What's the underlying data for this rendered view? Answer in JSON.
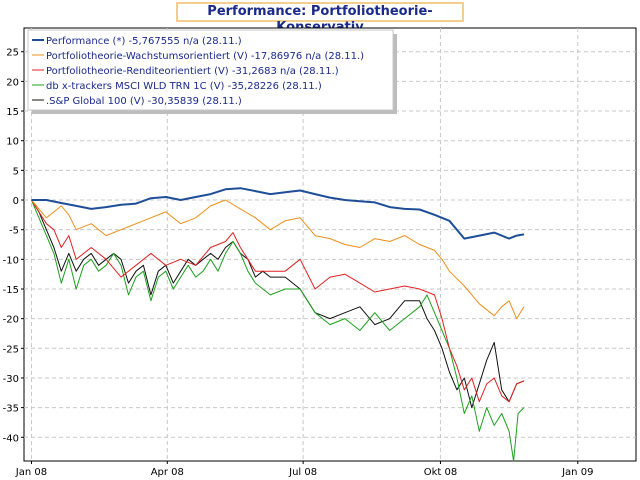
{
  "chart_data": {
    "type": "line",
    "title": "Performance: Portfoliotheorie-Konservativ",
    "xlabel": "",
    "ylabel": "",
    "x_ticks": [
      "Jan 08",
      "Apr 08",
      "Jul 08",
      "Okt 08",
      "Jan 09"
    ],
    "x_tick_days": [
      0,
      91,
      182,
      274,
      366
    ],
    "x_range_days": [
      -5,
      405
    ],
    "ylim": [
      -44,
      29
    ],
    "y_ticks": [
      25,
      20,
      15,
      10,
      5,
      0,
      -5,
      -10,
      -15,
      -20,
      -25,
      -30,
      -35,
      -40
    ],
    "grid": true,
    "legend_position": "top-left",
    "series": [
      {
        "name": "Performance (*) -5,767555 n/a (28.11.)",
        "color": "#1f4e99",
        "days": [
          0,
          10,
          20,
          30,
          40,
          50,
          60,
          70,
          80,
          90,
          100,
          110,
          120,
          130,
          140,
          150,
          160,
          170,
          180,
          190,
          200,
          210,
          220,
          230,
          240,
          250,
          260,
          270,
          280,
          290,
          300,
          310,
          320,
          325,
          330
        ],
        "values": [
          0,
          0,
          -0.5,
          -1.0,
          -1.5,
          -1.2,
          -0.8,
          -0.6,
          0.3,
          0.5,
          0.0,
          0.5,
          1.0,
          1.8,
          2.0,
          1.5,
          1.0,
          1.3,
          1.6,
          1.0,
          0.4,
          0.0,
          -0.2,
          -0.4,
          -1.2,
          -1.5,
          -1.6,
          -2.5,
          -3.5,
          -6.5,
          -6.0,
          -5.5,
          -6.5,
          -6.0,
          -5.8
        ]
      },
      {
        "name": "Portfoliotheorie-Wachstumsorientiert (V) -17,86976 n/a (28.11.)",
        "color": "#ee8f1c",
        "days": [
          0,
          5,
          10,
          15,
          20,
          25,
          30,
          40,
          50,
          60,
          70,
          80,
          90,
          100,
          110,
          120,
          130,
          140,
          150,
          160,
          170,
          180,
          190,
          200,
          210,
          220,
          230,
          240,
          250,
          260,
          270,
          275,
          280,
          290,
          300,
          310,
          315,
          320,
          325,
          330
        ],
        "values": [
          0,
          -1.5,
          -3.0,
          -2.0,
          -1.0,
          -2.5,
          -5.0,
          -4.0,
          -6.0,
          -5.0,
          -4.0,
          -3.0,
          -2.0,
          -4.0,
          -3.0,
          -1.0,
          0.0,
          -1.5,
          -3.0,
          -5.0,
          -3.5,
          -3.0,
          -6.0,
          -6.5,
          -7.5,
          -8.0,
          -6.5,
          -7.0,
          -6.0,
          -7.5,
          -8.5,
          -10.0,
          -12.0,
          -14.5,
          -17.5,
          -19.5,
          -18.0,
          -17.0,
          -20.0,
          -18.0
        ]
      },
      {
        "name": "Portfoliotheorie-Renditeorientiert (V) -31,2683 n/a (28.11.)",
        "color": "#e02222",
        "days": [
          0,
          5,
          10,
          15,
          20,
          25,
          30,
          40,
          50,
          60,
          70,
          80,
          90,
          100,
          110,
          120,
          130,
          135,
          140,
          150,
          160,
          170,
          180,
          190,
          200,
          210,
          220,
          230,
          240,
          250,
          260,
          270,
          275,
          280,
          285,
          290,
          295,
          300,
          305,
          310,
          315,
          320,
          325,
          330
        ],
        "values": [
          0,
          -2,
          -4,
          -5,
          -8,
          -6,
          -10,
          -8,
          -10,
          -13,
          -11,
          -9,
          -11,
          -10,
          -11,
          -8,
          -7,
          -5.5,
          -8,
          -12,
          -12,
          -12,
          -10,
          -15,
          -13,
          -12.5,
          -14,
          -15.5,
          -15,
          -14.5,
          -15,
          -16,
          -20,
          -25,
          -28,
          -32,
          -30,
          -34,
          -31,
          -30,
          -33,
          -34,
          -31,
          -30.5
        ]
      },
      {
        "name": "db x-trackers MSCI WLD TRN 1C (V) -35,28226 (28.11.)",
        "color": "#1ea01e",
        "days": [
          0,
          5,
          10,
          15,
          20,
          25,
          30,
          35,
          40,
          45,
          50,
          55,
          60,
          65,
          70,
          75,
          80,
          85,
          90,
          95,
          100,
          105,
          110,
          115,
          120,
          125,
          130,
          135,
          140,
          145,
          150,
          160,
          170,
          180,
          190,
          200,
          210,
          220,
          230,
          240,
          250,
          260,
          265,
          270,
          275,
          280,
          285,
          290,
          295,
          300,
          305,
          310,
          315,
          320,
          323,
          326,
          330
        ],
        "values": [
          0,
          -3,
          -6,
          -9,
          -14,
          -10,
          -15,
          -11,
          -10,
          -12,
          -11,
          -9,
          -11,
          -16,
          -13,
          -12,
          -17,
          -13,
          -12,
          -15,
          -13,
          -11,
          -13,
          -12,
          -10,
          -12,
          -9,
          -7,
          -9,
          -12,
          -14,
          -16,
          -15,
          -15,
          -19,
          -21,
          -20,
          -22,
          -19,
          -22,
          -20,
          -18,
          -16,
          -19,
          -22,
          -25,
          -30,
          -36,
          -33,
          -39,
          -35,
          -38,
          -36,
          -39,
          -44,
          -36,
          -35
        ]
      },
      {
        "name": ".S&P Global 100 (V) -30,35839 (28.11.)",
        "color": "#111111",
        "days": [
          0,
          5,
          10,
          15,
          20,
          25,
          30,
          35,
          40,
          45,
          50,
          55,
          60,
          65,
          70,
          75,
          80,
          85,
          90,
          95,
          100,
          105,
          110,
          115,
          120,
          125,
          130,
          135,
          140,
          145,
          150,
          155,
          160,
          170,
          180,
          190,
          200,
          210,
          220,
          230,
          240,
          250,
          260,
          265,
          270,
          275,
          280,
          285,
          290,
          295,
          300,
          305,
          310,
          315,
          320,
          325,
          330
        ],
        "values": [
          0,
          -2,
          -5,
          -8,
          -12,
          -9,
          -12,
          -10,
          -9,
          -11,
          -10,
          -9,
          -10,
          -14,
          -12,
          -11,
          -16,
          -12,
          -11,
          -14,
          -12,
          -10,
          -11,
          -10,
          -9,
          -10,
          -8,
          -7,
          -9,
          -10,
          -13,
          -12,
          -13,
          -13,
          -15,
          -19,
          -20,
          -19,
          -18,
          -21,
          -20,
          -17,
          -17,
          -20,
          -22,
          -25,
          -29,
          -32,
          -30,
          -35,
          -31,
          -27,
          -24,
          -32,
          -34,
          -31,
          -30.5
        ]
      }
    ]
  }
}
